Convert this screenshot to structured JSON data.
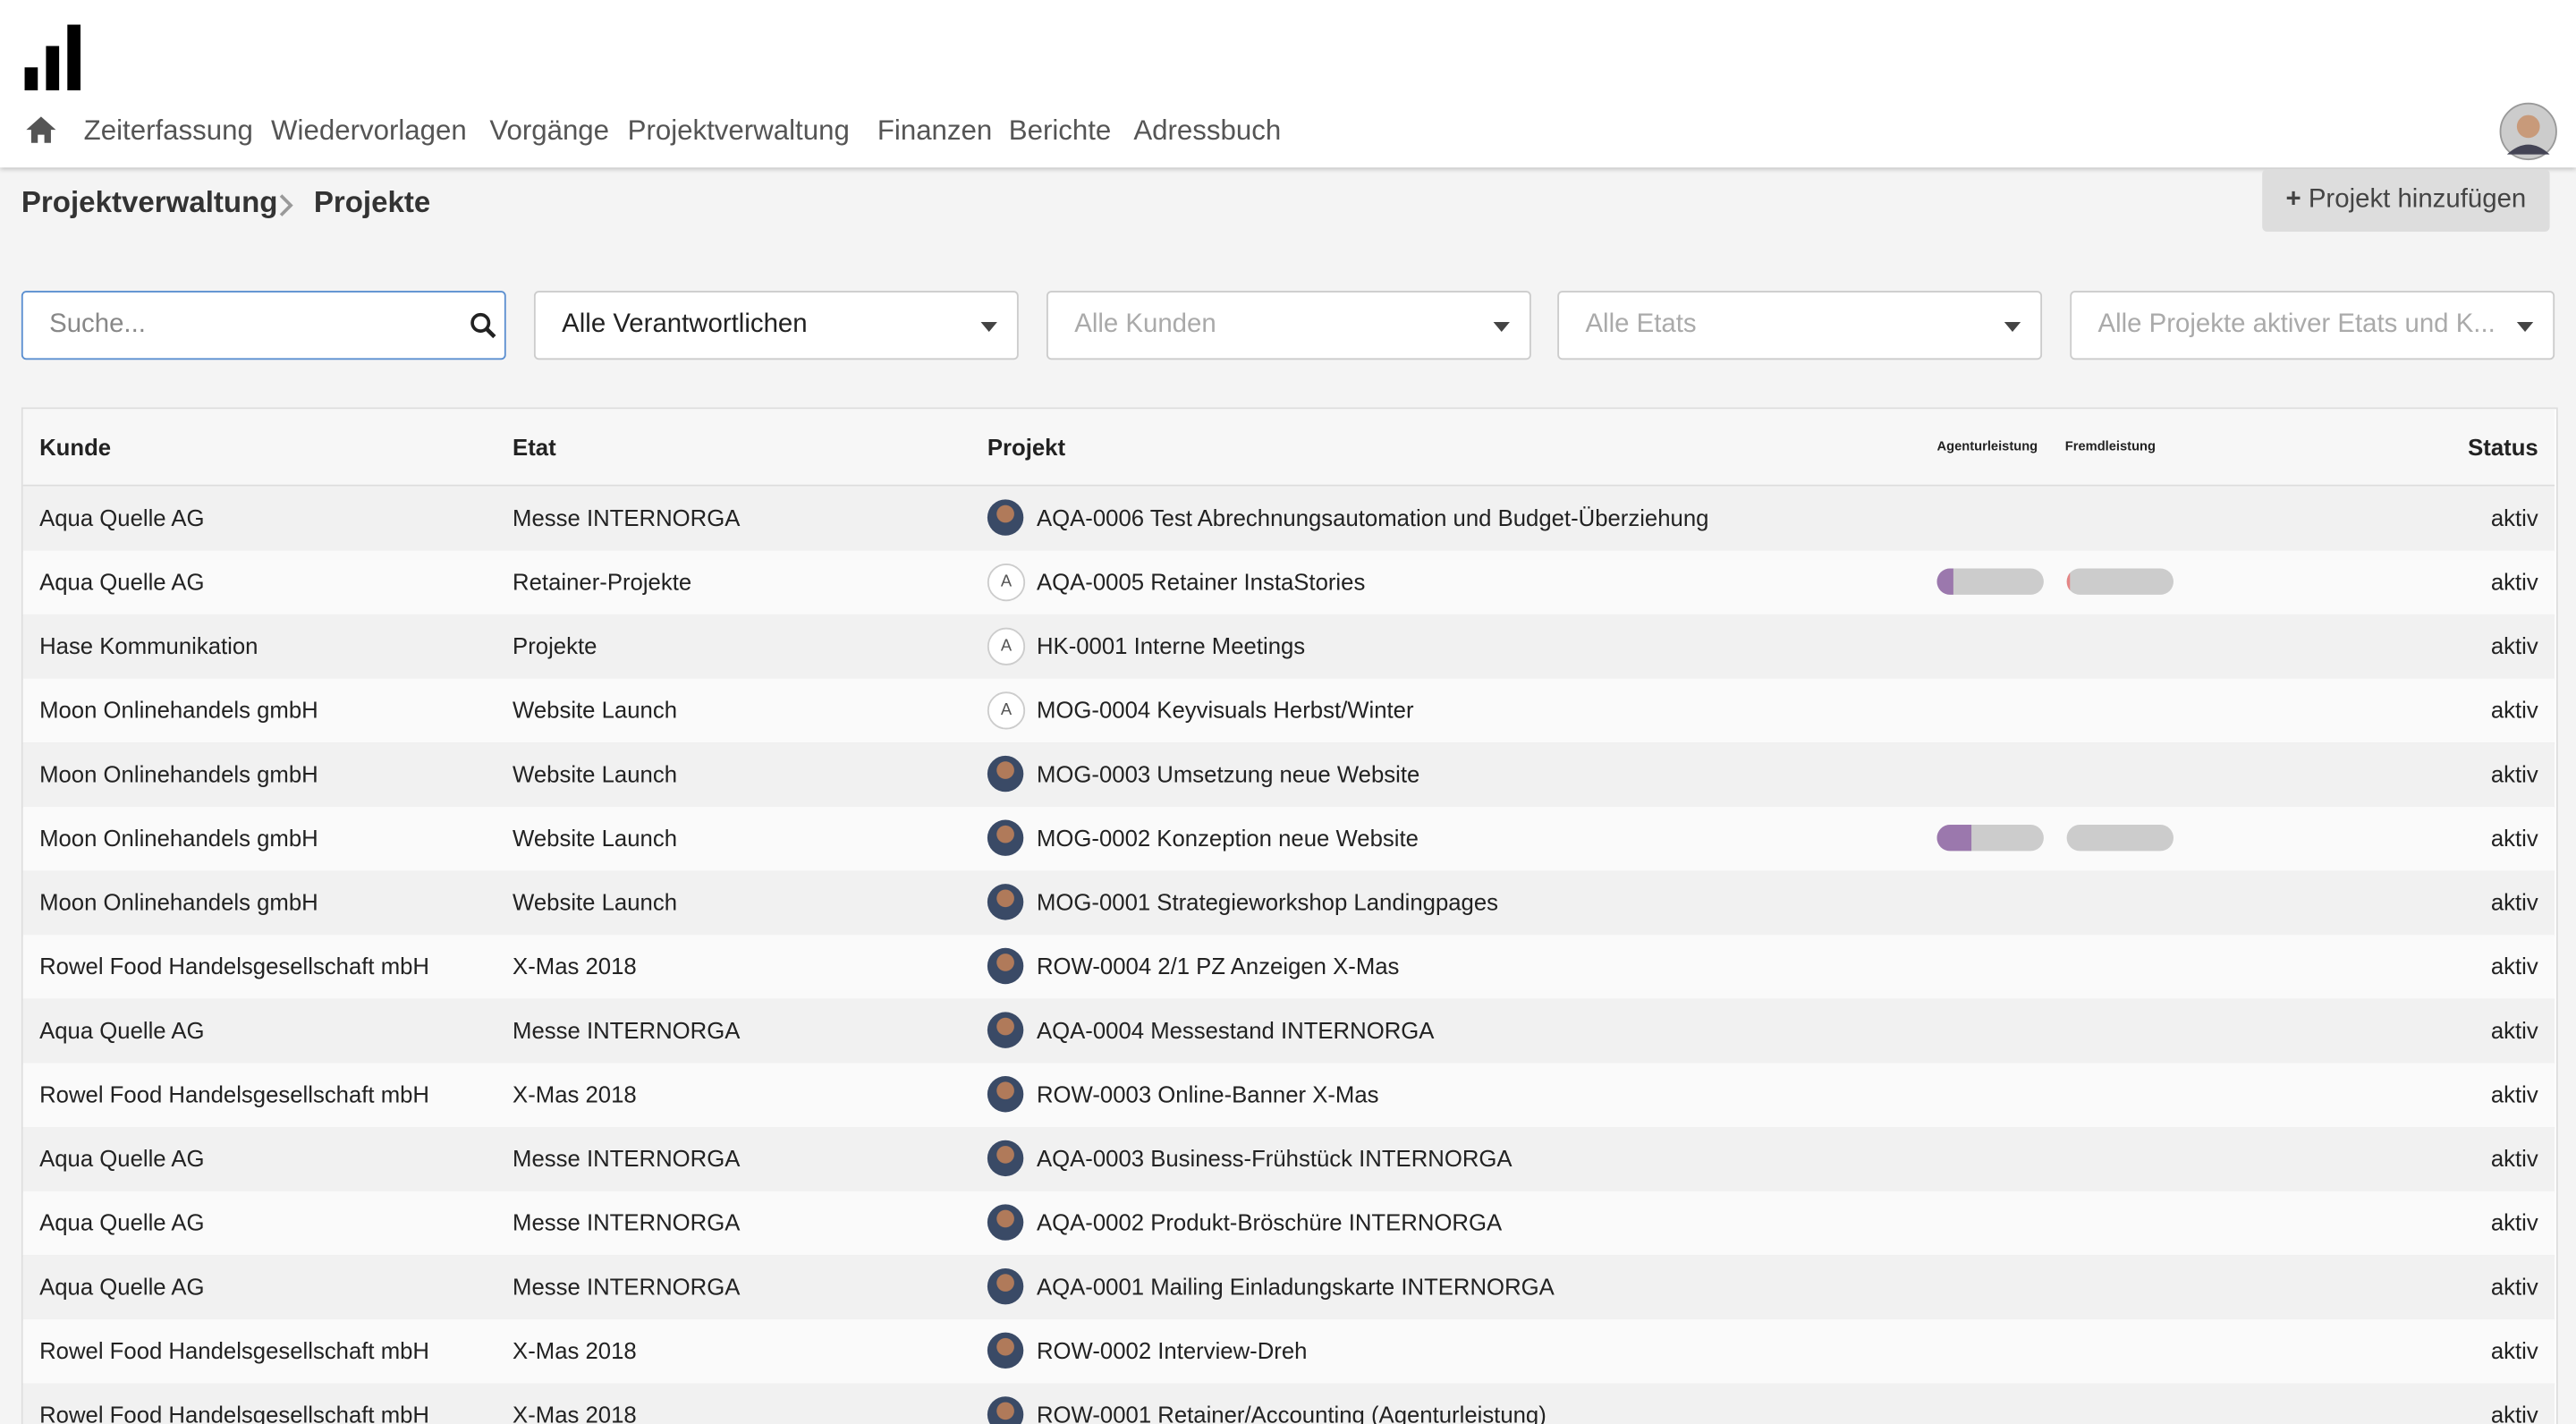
{
  "nav": {
    "items": [
      "Zeiterfassung",
      "Wiedervorlagen",
      "Vorgänge",
      "Projektverwaltung",
      "Finanzen",
      "Berichte",
      "Adressbuch"
    ]
  },
  "breadcrumb": [
    "Projektverwaltung",
    "Projekte"
  ],
  "button": "Projekt hinzufügen",
  "search": "Suche...",
  "filters": [
    "Alle Verantwortlichen",
    "Alle Kunden",
    "Alle Etats",
    "Alle Projekte aktiver Etats und K..."
  ],
  "table": {
    "headers": [
      "Kunde",
      "Etat",
      "Projekt",
      "Agenturleistung",
      "Fremdleistung",
      "Status"
    ],
    "rows": [
      {
        "kunde": "Aqua Quelle AG",
        "etat": "Messe INTERNORGA",
        "projekt": "AQA-0006 Test Abrechnungsautomation und Budget-Überziehung",
        "status": "aktiv"
      },
      {
        "kunde": "Aqua Quelle AG",
        "etat": "Retainer-Projekte",
        "avatar": "A",
        "projekt": "AQA-0005 Retainer InstaStories",
        "status": "aktiv",
        "agentur": 15,
        "fremd": 3
      },
      {
        "kunde": "Hase Kommunikation",
        "etat": "Projekte",
        "avatar": "A",
        "projekt": "HK-0001 Interne Meetings",
        "status": "aktiv"
      },
      {
        "kunde": "Moon Onlinehandels gmbH",
        "etat": "Website Launch",
        "avatar": "A",
        "projekt": "MOG-0004 Keyvisuals Herbst/Winter",
        "status": "aktiv"
      },
      {
        "kunde": "Moon Onlinehandels gmbH",
        "etat": "Website Launch",
        "projekt": "MOG-0003 Umsetzung neue Website",
        "status": "aktiv"
      },
      {
        "kunde": "Moon Onlinehandels gmbH",
        "etat": "Website Launch",
        "projekt": "MOG-0002 Konzeption neue Website",
        "status": "aktiv",
        "agentur": 33,
        "fremd": 0
      },
      {
        "kunde": "Moon Onlinehandels gmbH",
        "etat": "Website Launch",
        "projekt": "MOG-0001 Strategieworkshop Landingpages",
        "status": "aktiv"
      },
      {
        "kunde": "Rowel Food Handelsgesellschaft mbH",
        "etat": "X-Mas 2018",
        "projekt": "ROW-0004 2/1 PZ Anzeigen X-Mas",
        "status": "aktiv"
      },
      {
        "kunde": "Aqua Quelle AG",
        "etat": "Messe INTERNORGA",
        "projekt": "AQA-0004 Messestand INTERNORGA",
        "status": "aktiv"
      },
      {
        "kunde": "Rowel Food Handelsgesellschaft mbH",
        "etat": "X-Mas 2018",
        "projekt": "ROW-0003 Online-Banner X-Mas",
        "status": "aktiv"
      },
      {
        "kunde": "Aqua Quelle AG",
        "etat": "Messe INTERNORGA",
        "projekt": "AQA-0003 Business-Frühstück INTERNORGA",
        "status": "aktiv"
      },
      {
        "kunde": "Aqua Quelle AG",
        "etat": "Messe INTERNORGA",
        "projekt": "AQA-0002 Produkt-Bröschüre INTERNORGA",
        "status": "aktiv"
      },
      {
        "kunde": "Aqua Quelle AG",
        "etat": "Messe INTERNORGA",
        "projekt": "AQA-0001 Mailing Einladungskarte INTERNORGA",
        "status": "aktiv"
      },
      {
        "kunde": "Rowel Food Handelsgesellschaft mbH",
        "etat": "X-Mas 2018",
        "projekt": "ROW-0002 Interview-Dreh",
        "status": "aktiv"
      },
      {
        "kunde": "Rowel Food Handelsgesellschaft mbH",
        "etat": "X-Mas 2018",
        "projekt": "ROW-0001 Retainer/Accounting (Agenturleistung)",
        "status": "aktiv"
      }
    ]
  }
}
